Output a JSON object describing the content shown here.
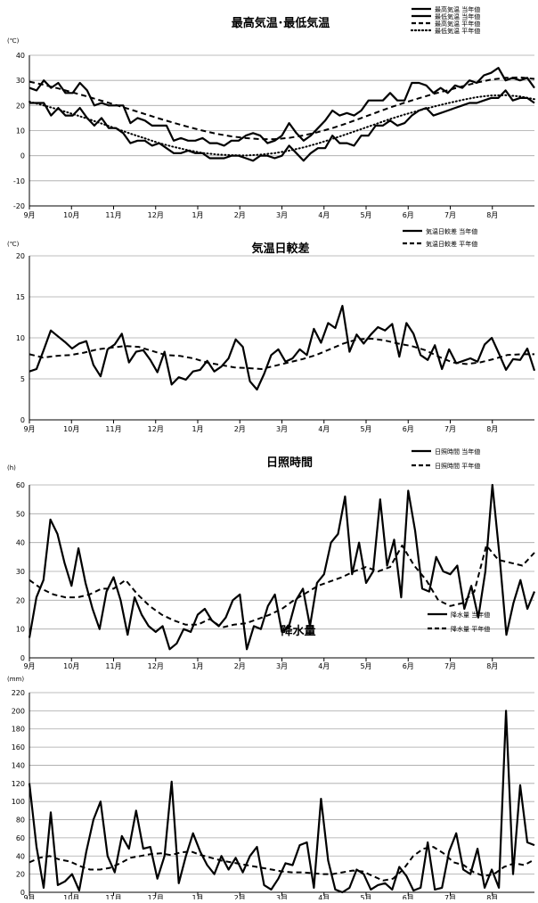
{
  "chart_data": [
    {
      "type": "line",
      "title": "最高気温･最低気温",
      "unit": "(℃)",
      "ylim": [
        -20,
        40
      ],
      "ytick_step": 10,
      "x_range": [
        0,
        12
      ],
      "x_tick_labels": [
        "9月",
        "10月",
        "11月",
        "12月",
        "1月",
        "2月",
        "3月",
        "4月",
        "5月",
        "6月",
        "7月",
        "8月"
      ],
      "legend_position": "top-right",
      "grid": true,
      "series": [
        {
          "name": "最高気温 当年値",
          "style": "solid",
          "y": [
            27,
            26,
            30,
            27,
            29,
            25,
            25,
            29,
            26,
            20,
            21,
            20,
            20,
            20,
            13,
            15,
            14,
            12,
            12,
            12,
            6,
            7,
            6,
            6,
            7,
            5,
            5,
            4,
            6,
            6,
            8,
            9,
            8,
            5,
            6,
            8,
            13,
            9,
            6,
            8,
            11,
            14,
            18,
            16,
            17,
            16,
            18,
            22,
            22,
            22,
            25,
            22,
            22,
            29,
            29,
            28,
            25,
            27,
            25,
            28,
            27,
            30,
            29,
            32,
            33,
            35,
            30,
            31,
            30,
            31,
            27
          ]
        },
        {
          "name": "最低気温 当年値",
          "style": "solid",
          "y": [
            21,
            21,
            21,
            16,
            19,
            16,
            16,
            19,
            15,
            12,
            15,
            11,
            11,
            9,
            5,
            6,
            6,
            4,
            5,
            3,
            1,
            1,
            2,
            1,
            1,
            -1,
            -1,
            -1,
            0,
            0,
            -1,
            -2,
            0,
            0,
            -1,
            0,
            4,
            1,
            -2,
            1,
            3,
            3,
            8,
            5,
            5,
            4,
            8,
            8,
            12,
            12,
            14,
            12,
            13,
            16,
            18,
            19,
            16,
            17,
            18,
            19,
            20,
            21,
            21,
            22,
            23,
            23,
            26,
            22,
            23,
            23,
            21
          ]
        },
        {
          "name": "最高気温 平年値",
          "style": "dashed",
          "y": [
            29.5,
            28.2,
            26.8,
            25.2,
            23.6,
            21.9,
            20.2,
            18.4,
            16.6,
            14.8,
            13.1,
            11.5,
            10.0,
            8.7,
            7.7,
            7.0,
            6.6,
            6.6,
            7.1,
            8.1,
            9.4,
            11.0,
            12.9,
            15.0,
            17.1,
            19.2,
            21.1,
            22.9,
            24.6,
            26.1,
            27.6,
            29.1,
            30.3,
            31.0,
            31.2,
            30.6
          ]
        },
        {
          "name": "最低気温 平年値",
          "style": "dotted",
          "y": [
            21.5,
            20.0,
            18.4,
            16.6,
            14.8,
            12.8,
            10.8,
            8.8,
            6.9,
            5.0,
            3.5,
            2.2,
            1.1,
            0.5,
            0.2,
            0.1,
            0.4,
            1.0,
            2.0,
            3.3,
            4.9,
            6.7,
            8.6,
            10.6,
            12.6,
            14.6,
            16.4,
            18.0,
            19.5,
            20.9,
            22.2,
            23.3,
            24.0,
            24.1,
            23.6,
            22.5
          ]
        }
      ]
    },
    {
      "type": "line",
      "title": "気温日較差",
      "unit": "(℃)",
      "ylim": [
        0,
        20
      ],
      "ytick_step": 5,
      "x_range": [
        0,
        12
      ],
      "x_tick_labels": [
        "9月",
        "10月",
        "11月",
        "12月",
        "1月",
        "2月",
        "3月",
        "4月",
        "5月",
        "6月",
        "7月",
        "8月"
      ],
      "legend_position": "top-right",
      "grid": true,
      "series": [
        {
          "name": "気温日較差 当年値",
          "style": "solid",
          "y": [
            5.9,
            6.2,
            8.5,
            10.9,
            10.2,
            9.5,
            8.7,
            9.3,
            9.6,
            6.7,
            5.3,
            8.6,
            9.2,
            10.5,
            7.0,
            8.3,
            8.5,
            7.3,
            5.8,
            8.3,
            4.3,
            5.2,
            4.9,
            5.9,
            6.1,
            7.2,
            5.9,
            6.5,
            7.5,
            9.8,
            8.9,
            4.7,
            3.7,
            5.6,
            7.9,
            8.6,
            7.1,
            7.5,
            8.6,
            7.9,
            11.1,
            9.4,
            11.8,
            11.2,
            13.9,
            8.3,
            10.4,
            9.3,
            10.4,
            11.3,
            10.9,
            11.7,
            7.7,
            11.8,
            10.5,
            7.9,
            7.3,
            9.1,
            6.2,
            8.6,
            6.9,
            7.2,
            7.5,
            7.1,
            9.2,
            10.0,
            8.1,
            6.1,
            7.4,
            7.3,
            8.7,
            6.0
          ]
        },
        {
          "name": "気温日較差 平年値",
          "style": "dashed",
          "y": [
            8.0,
            7.6,
            7.8,
            7.9,
            8.2,
            8.6,
            8.8,
            9.0,
            8.9,
            8.4,
            7.9,
            7.8,
            7.5,
            7.0,
            6.7,
            6.4,
            6.3,
            6.2,
            6.6,
            7.0,
            7.4,
            7.9,
            8.6,
            9.3,
            9.8,
            9.9,
            9.7,
            9.3,
            9.0,
            8.5,
            7.7,
            7.0,
            6.8,
            7.0,
            7.4,
            7.9,
            8.0,
            8.0
          ]
        }
      ]
    },
    {
      "type": "line",
      "title": "日照時間",
      "unit": "(h)",
      "ylim": [
        0,
        60
      ],
      "ytick_step": 10,
      "x_range": [
        0,
        12
      ],
      "x_tick_labels": [
        "9月",
        "10月",
        "11月",
        "12月",
        "1月",
        "2月",
        "3月",
        "4月",
        "5月",
        "6月",
        "7月",
        "8月"
      ],
      "legend_position": "top-right",
      "grid": true,
      "series": [
        {
          "name": "日照時間 当年値",
          "style": "solid",
          "y": [
            7,
            21,
            27,
            48,
            43,
            33,
            25,
            38,
            26,
            17,
            10,
            23,
            28,
            20,
            8,
            21,
            15,
            11,
            9,
            11,
            3,
            5,
            10,
            9,
            15,
            17,
            13,
            11,
            14,
            20,
            22,
            3,
            11,
            10,
            18,
            22,
            9,
            11,
            20,
            24,
            11,
            26,
            29,
            40,
            43,
            56,
            29,
            40,
            26,
            30,
            55,
            32,
            41,
            21,
            58,
            44,
            24,
            23,
            35,
            30,
            29,
            32,
            17,
            25,
            14,
            30,
            60,
            36,
            8,
            19,
            27,
            17,
            23
          ]
        },
        {
          "name": "日照時間 平年値",
          "style": "dashed",
          "y": [
            27,
            24,
            22,
            21,
            21,
            22,
            24,
            24,
            27,
            22,
            18,
            15,
            13,
            11.5,
            11.5,
            13.5,
            10.5,
            11.5,
            12,
            13.5,
            15,
            17,
            20,
            22.5,
            25,
            26.5,
            28,
            30,
            31.5,
            30,
            31.5,
            39,
            32,
            27,
            20,
            18,
            19,
            23,
            39,
            34,
            33,
            32,
            36.5
          ]
        }
      ]
    },
    {
      "type": "line",
      "title": "降水量",
      "unit": "(mm)",
      "ylim": [
        0,
        220
      ],
      "ytick_step": 20,
      "x_range": [
        0,
        12
      ],
      "x_tick_labels": [
        "9月",
        "10月",
        "11月",
        "12月",
        "1月",
        "2月",
        "3月",
        "4月",
        "5月",
        "6月",
        "7月",
        "8月"
      ],
      "legend_position": "top-right",
      "grid": true,
      "series": [
        {
          "name": "降水量 当年値",
          "style": "solid",
          "y": [
            120,
            50,
            5,
            88,
            8,
            12,
            20,
            2,
            45,
            80,
            100,
            40,
            22,
            62,
            48,
            90,
            48,
            50,
            15,
            40,
            122,
            10,
            40,
            65,
            45,
            30,
            20,
            40,
            25,
            38,
            22,
            40,
            50,
            8,
            3,
            15,
            32,
            30,
            52,
            55,
            5,
            103,
            35,
            3,
            0,
            5,
            25,
            20,
            3,
            8,
            10,
            3,
            28,
            18,
            2,
            5,
            55,
            3,
            5,
            45,
            65,
            25,
            20,
            48,
            5,
            25,
            5,
            200,
            20,
            118,
            55,
            52
          ]
        },
        {
          "name": "降水量 平年値",
          "style": "dashed",
          "y": [
            33,
            38,
            40,
            36,
            34,
            29,
            25,
            25,
            27,
            32,
            38,
            40,
            42,
            43,
            41,
            44,
            45,
            41,
            38,
            35,
            33,
            31,
            29,
            27,
            25,
            23,
            22,
            22,
            21,
            20,
            20,
            22,
            24,
            23,
            18,
            13,
            15,
            25,
            40,
            48,
            50,
            43,
            33,
            30,
            22,
            18,
            20,
            28,
            32,
            30,
            36
          ]
        }
      ]
    }
  ]
}
